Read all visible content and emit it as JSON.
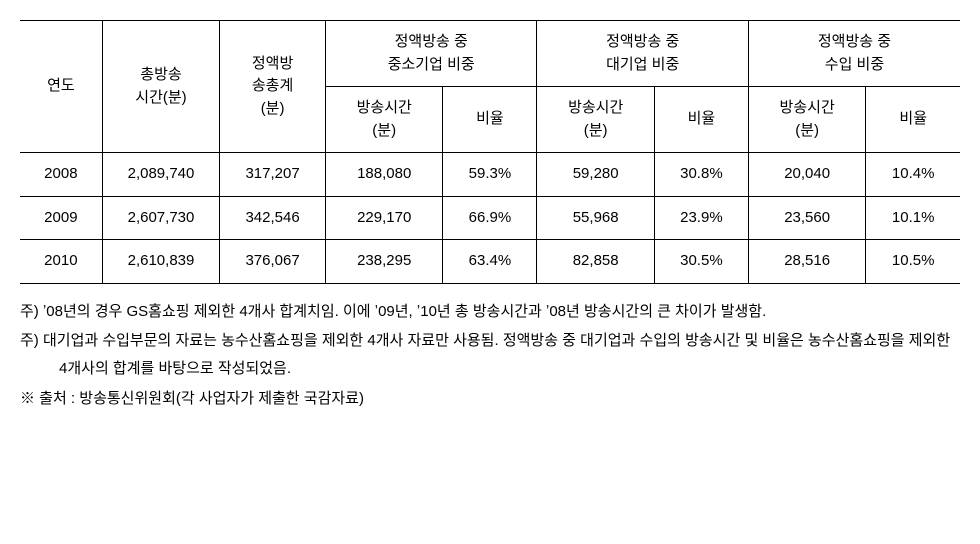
{
  "table": {
    "columns": {
      "year": "연도",
      "total_broadcast": "총방송\n시간(분)",
      "fixed_total": "정액방\n송총계\n(분)",
      "group_sme": "정액방송 중\n중소기업 비중",
      "group_large": "정액방송 중\n대기업 비중",
      "group_import": "정액방송 중\n수입 비중",
      "sub_bt": "방송시간\n(분)",
      "sub_rate": "비율"
    },
    "rows": [
      {
        "year": "2008",
        "total": "2,089,740",
        "fixed": "317,207",
        "sme_bt": "188,080",
        "sme_rate": "59.3%",
        "large_bt": "59,280",
        "large_rate": "30.8%",
        "imp_bt": "20,040",
        "imp_rate": "10.4%"
      },
      {
        "year": "2009",
        "total": "2,607,730",
        "fixed": "342,546",
        "sme_bt": "229,170",
        "sme_rate": "66.9%",
        "large_bt": "55,968",
        "large_rate": "23.9%",
        "imp_bt": "23,560",
        "imp_rate": "10.1%"
      },
      {
        "year": "2010",
        "total": "2,610,839",
        "fixed": "376,067",
        "sme_bt": "238,295",
        "sme_rate": "63.4%",
        "large_bt": "82,858",
        "large_rate": "30.5%",
        "imp_bt": "28,516",
        "imp_rate": "10.5%"
      }
    ]
  },
  "notes": {
    "n1": "주) ʼ08년의 경우 GS홈쇼핑 제외한 4개사 합계치임. 이에 ʼ09년, ʼ10년 총 방송시간과 ʼ08년 방송시간의 큰 차이가 발생함.",
    "n2": "주) 대기업과 수입부문의 자료는 농수산홈쇼핑을 제외한 4개사 자료만 사용됨. 정액방송 중 대기업과 수입의 방송시간 및 비율은 농수산홈쇼핑을 제외한 4개사의 합계를 바탕으로 작성되었음.",
    "n3": "※ 출처 : 방송통신위원회(각 사업자가 제출한 국감자료)"
  }
}
